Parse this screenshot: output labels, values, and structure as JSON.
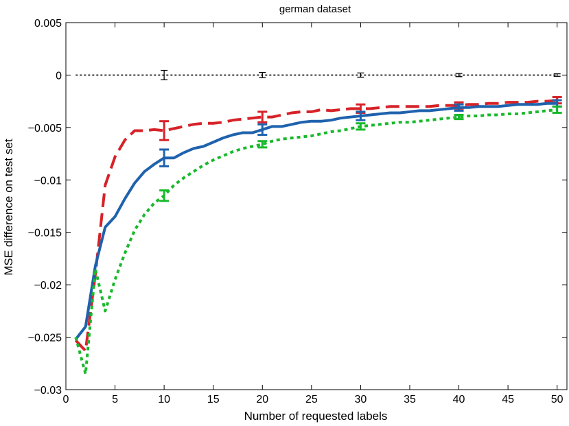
{
  "chart_data": {
    "type": "line",
    "title": "german dataset",
    "xlabel": "Number of requested labels",
    "ylabel": "MSE difference on test set",
    "xlim": [
      0,
      51
    ],
    "ylim": [
      -0.03,
      0.005
    ],
    "xticks": [
      0,
      5,
      10,
      15,
      20,
      25,
      30,
      35,
      40,
      45,
      50
    ],
    "xtick_labels": [
      "0",
      "5",
      "10",
      "15",
      "20",
      "25",
      "30",
      "35",
      "40",
      "45",
      "50"
    ],
    "yticks": [
      0.005,
      0,
      -0.005,
      -0.01,
      -0.015,
      -0.02,
      -0.025,
      -0.03
    ],
    "ytick_labels": [
      "0.005",
      "0",
      "−0.005",
      "−0.01",
      "−0.015",
      "−0.02",
      "−0.025",
      "−0.03"
    ],
    "grid": false,
    "legend": "none",
    "series": [
      {
        "color": "#000000",
        "style": "dotted",
        "x": [
          1,
          50
        ],
        "y": [
          0,
          0
        ],
        "error_bars": [
          {
            "x": 10,
            "y": 0.0,
            "err": 0.00045
          },
          {
            "x": 20,
            "y": 0.0,
            "err": 0.00025
          },
          {
            "x": 30,
            "y": 0.0,
            "err": 0.0002
          },
          {
            "x": 40,
            "y": 0.0,
            "err": 0.00015
          },
          {
            "x": 50,
            "y": 0.0,
            "err": 0.00012
          }
        ]
      },
      {
        "color": "#d62228",
        "style": "dashed",
        "x": [
          1,
          2,
          3,
          4,
          5,
          6,
          7,
          8,
          9,
          10,
          11,
          12,
          13,
          14,
          15,
          16,
          17,
          18,
          19,
          20,
          21,
          22,
          23,
          24,
          25,
          26,
          27,
          28,
          29,
          30,
          31,
          32,
          33,
          34,
          35,
          36,
          37,
          38,
          39,
          40,
          41,
          42,
          43,
          44,
          45,
          46,
          47,
          48,
          49,
          50
        ],
        "y": [
          -0.0253,
          -0.0263,
          -0.019,
          -0.0105,
          -0.0078,
          -0.0062,
          -0.0053,
          -0.0053,
          -0.0052,
          -0.0053,
          -0.0051,
          -0.0049,
          -0.0047,
          -0.0046,
          -0.0046,
          -0.0045,
          -0.0043,
          -0.0042,
          -0.0041,
          -0.004,
          -0.004,
          -0.0038,
          -0.0036,
          -0.0035,
          -0.0035,
          -0.0033,
          -0.0034,
          -0.0033,
          -0.0032,
          -0.0032,
          -0.0032,
          -0.0031,
          -0.003,
          -0.003,
          -0.003,
          -0.003,
          -0.003,
          -0.0029,
          -0.0029,
          -0.0029,
          -0.0028,
          -0.0028,
          -0.0027,
          -0.0027,
          -0.0026,
          -0.0026,
          -0.0026,
          -0.0025,
          -0.0025,
          -0.0024
        ],
        "error_bars": [
          {
            "x": 10,
            "y": -0.0053,
            "err": 0.0009
          },
          {
            "x": 20,
            "y": -0.004,
            "err": 0.0005
          },
          {
            "x": 30,
            "y": -0.0032,
            "err": 0.0004
          },
          {
            "x": 40,
            "y": -0.0029,
            "err": 0.0003
          },
          {
            "x": 50,
            "y": -0.0024,
            "err": 0.0003
          }
        ]
      },
      {
        "color": "#1f62ad",
        "style": "solid",
        "x": [
          1,
          2,
          3,
          4,
          5,
          6,
          7,
          8,
          9,
          10,
          11,
          12,
          13,
          14,
          15,
          16,
          17,
          18,
          19,
          20,
          21,
          22,
          23,
          24,
          25,
          26,
          27,
          28,
          29,
          30,
          31,
          32,
          33,
          34,
          35,
          36,
          37,
          38,
          39,
          40,
          41,
          42,
          43,
          44,
          45,
          46,
          47,
          48,
          49,
          50
        ],
        "y": [
          -0.0252,
          -0.024,
          -0.0182,
          -0.0145,
          -0.0135,
          -0.0118,
          -0.0103,
          -0.0092,
          -0.0085,
          -0.0079,
          -0.0079,
          -0.0074,
          -0.007,
          -0.0068,
          -0.0064,
          -0.006,
          -0.0057,
          -0.0055,
          -0.0055,
          -0.0052,
          -0.0049,
          -0.0049,
          -0.0047,
          -0.0045,
          -0.0044,
          -0.0044,
          -0.0043,
          -0.0041,
          -0.004,
          -0.0039,
          -0.0038,
          -0.0037,
          -0.0036,
          -0.0036,
          -0.0035,
          -0.0034,
          -0.0034,
          -0.0033,
          -0.0032,
          -0.0031,
          -0.0031,
          -0.003,
          -0.003,
          -0.003,
          -0.0029,
          -0.0028,
          -0.0028,
          -0.0028,
          -0.0027,
          -0.0027
        ],
        "error_bars": [
          {
            "x": 10,
            "y": -0.0079,
            "err": 0.0008
          },
          {
            "x": 20,
            "y": -0.0052,
            "err": 0.0005
          },
          {
            "x": 30,
            "y": -0.0039,
            "err": 0.0004
          },
          {
            "x": 40,
            "y": -0.0031,
            "err": 0.0003
          },
          {
            "x": 50,
            "y": -0.0027,
            "err": 0.0003
          }
        ]
      },
      {
        "color": "#19b92b",
        "style": "dotted",
        "x": [
          1,
          2,
          3,
          4,
          5,
          6,
          7,
          8,
          9,
          10,
          11,
          12,
          13,
          14,
          15,
          16,
          17,
          18,
          19,
          20,
          21,
          22,
          23,
          24,
          25,
          26,
          27,
          28,
          29,
          30,
          31,
          32,
          33,
          34,
          35,
          36,
          37,
          38,
          39,
          40,
          41,
          42,
          43,
          44,
          45,
          46,
          47,
          48,
          49,
          50
        ],
        "y": [
          -0.025,
          -0.0285,
          -0.0185,
          -0.0225,
          -0.0195,
          -0.017,
          -0.0148,
          -0.0133,
          -0.0122,
          -0.0115,
          -0.0105,
          -0.0098,
          -0.0092,
          -0.0086,
          -0.0081,
          -0.0077,
          -0.0073,
          -0.007,
          -0.0068,
          -0.0066,
          -0.0063,
          -0.0061,
          -0.006,
          -0.0059,
          -0.0058,
          -0.0056,
          -0.0054,
          -0.0053,
          -0.0051,
          -0.0049,
          -0.0048,
          -0.0047,
          -0.0046,
          -0.0045,
          -0.0045,
          -0.0044,
          -0.0043,
          -0.0042,
          -0.0041,
          -0.004,
          -0.0039,
          -0.0039,
          -0.0038,
          -0.0038,
          -0.0037,
          -0.0037,
          -0.0036,
          -0.0035,
          -0.0034,
          -0.0033
        ],
        "error_bars": [
          {
            "x": 10,
            "y": -0.0115,
            "err": 0.0005
          },
          {
            "x": 20,
            "y": -0.0066,
            "err": 0.0003
          },
          {
            "x": 30,
            "y": -0.0049,
            "err": 0.0003
          },
          {
            "x": 40,
            "y": -0.004,
            "err": 0.0002
          },
          {
            "x": 50,
            "y": -0.0033,
            "err": 0.0003
          }
        ]
      }
    ]
  }
}
